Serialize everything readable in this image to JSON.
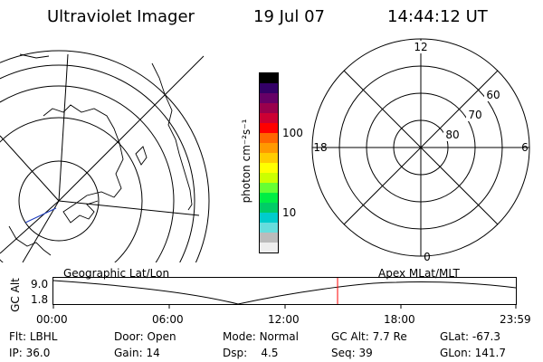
{
  "header": {
    "title": "Ultraviolet Imager",
    "date": "19 Jul 07",
    "time": "14:44:12 UT"
  },
  "colorbar": {
    "unit_label": "photon cm⁻²s⁻¹",
    "tick_labels": [
      "100",
      "10"
    ],
    "colors": [
      "#000000",
      "#330066",
      "#660066",
      "#99004c",
      "#cc0033",
      "#ff0000",
      "#ff6600",
      "#ff9900",
      "#ffcc00",
      "#ffff00",
      "#ccff00",
      "#66ff33",
      "#00ee44",
      "#00cc66",
      "#00cccc",
      "#66dddd",
      "#bbbbbb",
      "#eeeeee"
    ]
  },
  "polar_plot": {
    "lat_labels": [
      "60",
      "70",
      "80"
    ],
    "mlt_labels": {
      "top": "12",
      "left": "18",
      "right": "6",
      "bottom": "0"
    }
  },
  "timeline": {
    "left_label": "Geographic Lat/Lon",
    "right_label": "Apex MLat/MLT",
    "y_axis_title": "GC Alt",
    "y_ticks": [
      "9.0",
      "1.8"
    ],
    "x_ticks": [
      "00:00",
      "06:00",
      "12:00",
      "18:00",
      "23:59"
    ],
    "marker_color": "#ff0000"
  },
  "status": {
    "row1": [
      {
        "key": "Flt:",
        "val": "LBHL"
      },
      {
        "key": "Door:",
        "val": "Open"
      },
      {
        "key": "Mode:",
        "val": "Normal"
      },
      {
        "key": "GC Alt:",
        "val": "7.7 Re"
      },
      {
        "key": "GLat:",
        "val": "-67.3"
      }
    ],
    "row2": [
      {
        "key": "IP:",
        "val": "36.0"
      },
      {
        "key": "Gain:",
        "val": "14"
      },
      {
        "key": "Dsp:",
        "val": "4.5"
      },
      {
        "key": "Seq:",
        "val": "39"
      },
      {
        "key": "GLon:",
        "val": "141.7"
      }
    ]
  }
}
